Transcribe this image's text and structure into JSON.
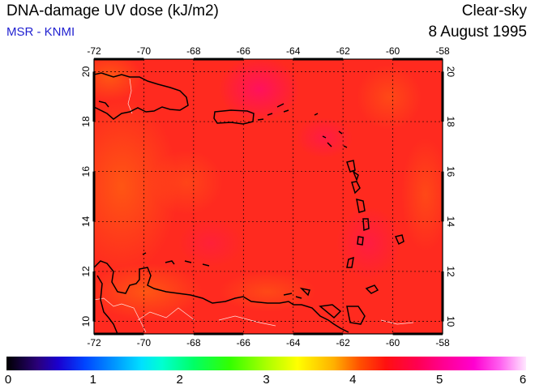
{
  "header": {
    "title": "DNA-damage UV dose (kJ/m2)",
    "source": "MSR - KNMI",
    "condition": "Clear-sky",
    "date": "8 August 1995"
  },
  "map": {
    "lon_ticks": [
      "-72",
      "-70",
      "-68",
      "-66",
      "-64",
      "-62",
      "-60",
      "-58"
    ],
    "lat_ticks": [
      "10",
      "12",
      "14",
      "16",
      "18",
      "20"
    ],
    "colors": {
      "field": "#ff2a1f",
      "field_hot": "#ff1050",
      "field_warm": "#ff5a1a",
      "coast": "#000000",
      "border": "#ffffff",
      "grid": "#000000"
    }
  },
  "colorbar": {
    "labels": [
      "0",
      "1",
      "2",
      "3",
      "4",
      "5",
      "6"
    ]
  }
}
